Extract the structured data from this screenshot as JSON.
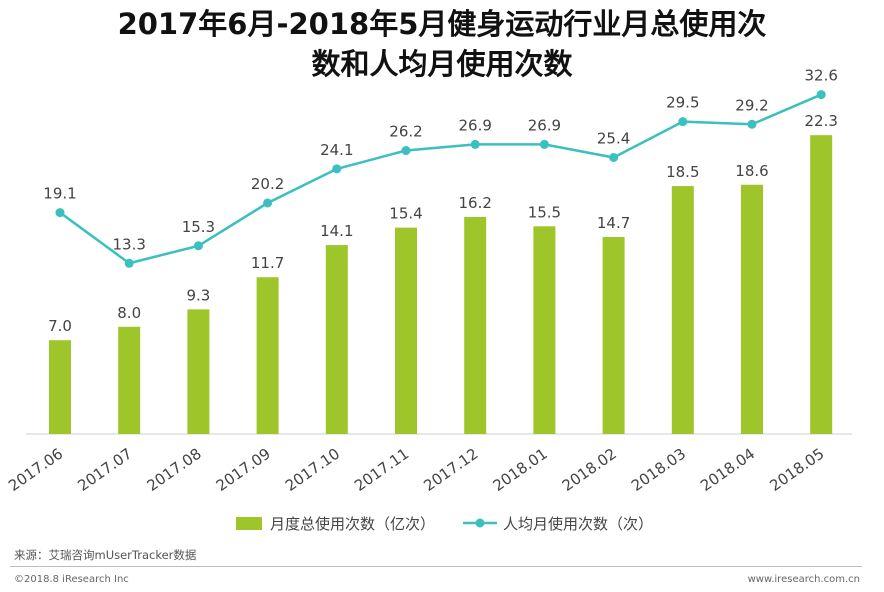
{
  "title_line1": "2017年6月-2018年5月健身运动行业月总使用次",
  "title_line2": "数和人均月使用次数",
  "chart_data": {
    "type": "bar",
    "categories": [
      "2017.06",
      "2017.07",
      "2017.08",
      "2017.09",
      "2017.10",
      "2017.11",
      "2017.12",
      "2018.01",
      "2018.02",
      "2018.03",
      "2018.04",
      "2018.05"
    ],
    "series": [
      {
        "name": "月度总使用次数（亿次）",
        "type": "bar",
        "color": "#9ec62a",
        "values": [
          7.0,
          8.0,
          9.3,
          11.7,
          14.1,
          15.4,
          16.2,
          15.5,
          14.7,
          18.5,
          18.6,
          22.3
        ]
      },
      {
        "name": "人均月使用次数（次）",
        "type": "line",
        "color": "#3bbfbf",
        "values": [
          19.1,
          13.3,
          15.3,
          20.2,
          24.1,
          26.2,
          26.9,
          26.9,
          25.4,
          29.5,
          29.2,
          32.6
        ]
      }
    ],
    "grid": false,
    "legend_position": "bottom"
  },
  "legend": {
    "bar_label": "月度总使用次数（亿次）",
    "line_label": "人均月使用次数（次）"
  },
  "source": "来源：艾瑞咨询mUserTracker数据",
  "copyright": "©2018.8 iResearch Inc",
  "website": "www.iresearch.com.cn"
}
